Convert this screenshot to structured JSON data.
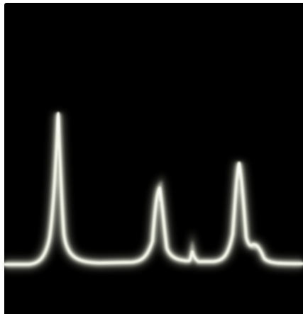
{
  "scene": {
    "subject": "oscilloscope-trace",
    "background_color": "#000000",
    "frame_color": "#ffffff",
    "trace_color": "#f4f6ea",
    "glow_color": "#dfe6cf"
  }
}
